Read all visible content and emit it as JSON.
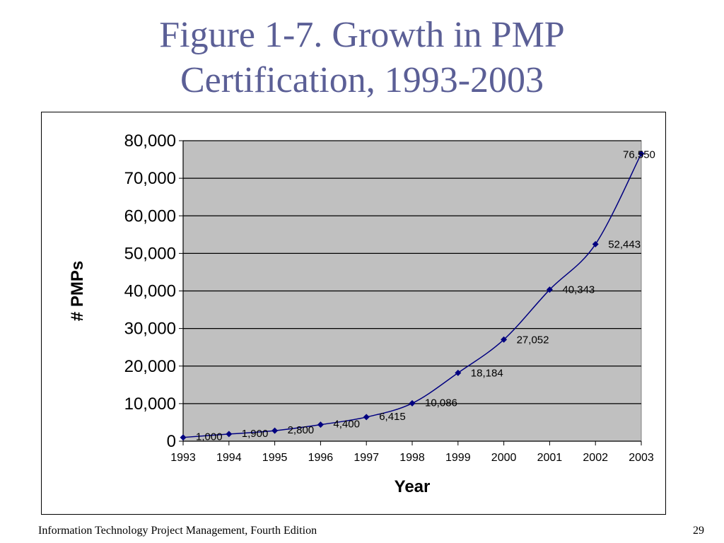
{
  "slide": {
    "title_line1": "Figure 1-7. Growth in PMP",
    "title_line2": "Certification, 1993-2003",
    "title_color": "#5b5f96",
    "footer_text": "Information Technology Project Management, Fourth Edition",
    "page_number": "29"
  },
  "chart_data": {
    "type": "line",
    "xlabel": "Year",
    "ylabel": "# PMPs",
    "ylim": [
      0,
      80000
    ],
    "yticks": [
      "0",
      "10,000",
      "20,000",
      "30,000",
      "40,000",
      "50,000",
      "60,000",
      "70,000",
      "80,000"
    ],
    "categories": [
      "1993",
      "1994",
      "1995",
      "1996",
      "1997",
      "1998",
      "1999",
      "2000",
      "2001",
      "2002",
      "2003"
    ],
    "series": [
      {
        "values": [
          1000,
          1900,
          2800,
          4400,
          6415,
          10086,
          18184,
          27052,
          40343,
          52443,
          76550
        ],
        "labels": [
          "1,000",
          "1,900",
          "2,800",
          "4,400",
          "6,415",
          "10,086",
          "18,184",
          "27,052",
          "40,343",
          "52,443",
          "76,550"
        ],
        "color": "#000080",
        "marker": "diamond"
      }
    ],
    "grid": true,
    "plot_background": "#c0c0c0",
    "legend": "none"
  }
}
